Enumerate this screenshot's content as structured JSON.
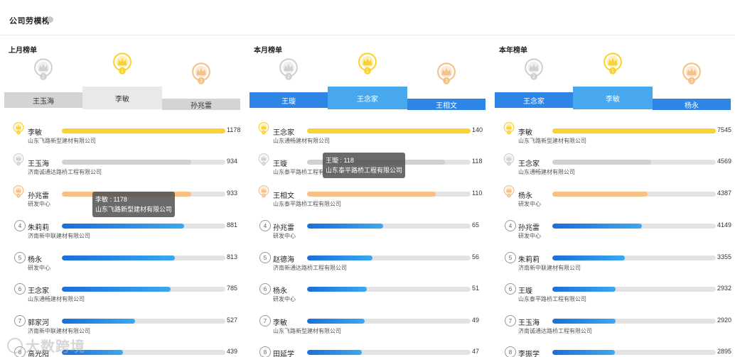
{
  "page": {
    "title": "公司劳模榜"
  },
  "colors": {
    "gold": "#fad231",
    "silver": "#d0d0d0",
    "bronze": "#f7c184",
    "blue_light": "#3ba8f0",
    "blue_dark": "#1a6fd9",
    "tab_gray_active": "#e9e9e9",
    "tab_gray_side": "#d4d4d4",
    "tab_blue_active": "#48a8ee",
    "tab_blue_side": "#2d86e6"
  },
  "panels": [
    {
      "title": "上月榜单",
      "theme": "gray",
      "podium": {
        "first": "李敏",
        "second": "王玉海",
        "third": "孙兆雷"
      },
      "rows": [
        {
          "rank": "1",
          "name": "李敏",
          "company": "山东飞路新型建材有限公司",
          "value": 1178
        },
        {
          "rank": "2",
          "name": "王玉海",
          "company": "济南诚通达路桥工程有限公司",
          "value": 934
        },
        {
          "rank": "3",
          "name": "孙兆雷",
          "company": "研发中心",
          "value": 933
        },
        {
          "rank": "4",
          "name": "朱莉莉",
          "company": "济南新中联建材有限公司",
          "value": 881
        },
        {
          "rank": "5",
          "name": "杨永",
          "company": "研发中心",
          "value": 813
        },
        {
          "rank": "6",
          "name": "王念家",
          "company": "山东通畅建材有限公司",
          "value": 785
        },
        {
          "rank": "7",
          "name": "郭家河",
          "company": "济南新中联建材有限公司",
          "value": 527
        },
        {
          "rank": "8",
          "name": "高光阳",
          "company": "",
          "value": 439
        }
      ],
      "max": 1178,
      "tooltip": {
        "line1": "李敏 : 1178",
        "line2": "山东飞路新型建材有限公司"
      }
    },
    {
      "title": "本月榜单",
      "theme": "blue",
      "podium": {
        "first": "王念家",
        "second": "王璇",
        "third": "王相文"
      },
      "rows": [
        {
          "rank": "1",
          "name": "王念家",
          "company": "山东通畅建材有限公司",
          "value": 140
        },
        {
          "rank": "2",
          "name": "王璇",
          "company": "山东泰平路桥工程有限公司",
          "value": 118
        },
        {
          "rank": "3",
          "name": "王相文",
          "company": "山东泰平路桥工程有限公司",
          "value": 110
        },
        {
          "rank": "4",
          "name": "孙兆雷",
          "company": "研发中心",
          "value": 65
        },
        {
          "rank": "5",
          "name": "赵德海",
          "company": "济南新通达路桥工程有限公司",
          "value": 56
        },
        {
          "rank": "6",
          "name": "杨永",
          "company": "研发中心",
          "value": 51
        },
        {
          "rank": "7",
          "name": "李敏",
          "company": "山东飞路新型建材有限公司",
          "value": 49
        },
        {
          "rank": "8",
          "name": "田延学",
          "company": "",
          "value": 47
        }
      ],
      "max": 140,
      "tooltip": {
        "line1": "王璇 : 118",
        "line2": "山东泰平路桥工程有限公司"
      }
    },
    {
      "title": "本年榜单",
      "theme": "blue",
      "podium": {
        "first": "李敏",
        "second": "王念家",
        "third": "杨永"
      },
      "rows": [
        {
          "rank": "1",
          "name": "李敏",
          "company": "山东飞路新型建材有限公司",
          "value": 7545
        },
        {
          "rank": "2",
          "name": "王念家",
          "company": "山东通畅建材有限公司",
          "value": 4569
        },
        {
          "rank": "3",
          "name": "杨永",
          "company": "研发中心",
          "value": 4387
        },
        {
          "rank": "4",
          "name": "孙兆雷",
          "company": "研发中心",
          "value": 4149
        },
        {
          "rank": "5",
          "name": "朱莉莉",
          "company": "济南新中联建材有限公司",
          "value": 3355
        },
        {
          "rank": "6",
          "name": "王璇",
          "company": "山东泰平路桥工程有限公司",
          "value": 2932
        },
        {
          "rank": "7",
          "name": "王玉海",
          "company": "济南诚通达路桥工程有限公司",
          "value": 2920
        },
        {
          "rank": "8",
          "name": "李振学",
          "company": "",
          "value": 2895
        }
      ],
      "max": 7545,
      "tooltip": null
    }
  ],
  "watermark": {
    "text": "大数跨境"
  }
}
